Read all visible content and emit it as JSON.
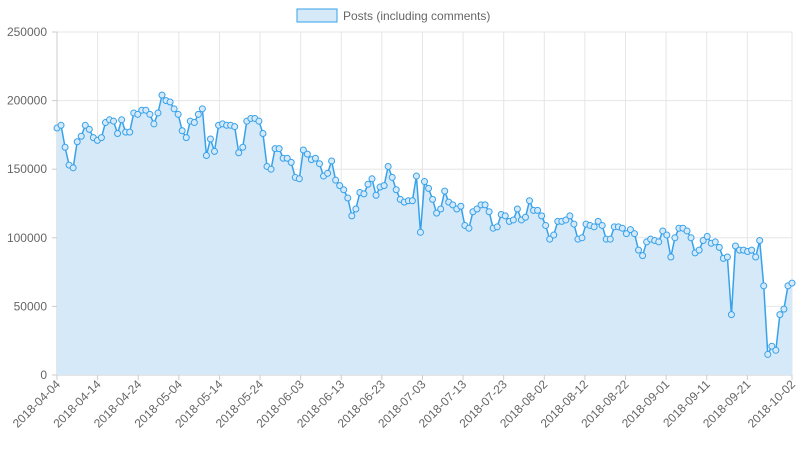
{
  "chart_data": {
    "type": "area",
    "title": "",
    "xlabel": "",
    "ylabel": "",
    "ylim": [
      0,
      250000
    ],
    "y_ticks": [
      "250000",
      "200000",
      "150000",
      "100000",
      "50000",
      "0"
    ],
    "x_ticks": [
      "2018-04-04",
      "2018-04-14",
      "2018-04-24",
      "2018-05-04",
      "2018-05-14",
      "2018-05-24",
      "2018-06-03",
      "2018-06-13",
      "2018-06-23",
      "2018-07-03",
      "2018-07-13",
      "2018-07-23",
      "2018-08-02",
      "2018-08-12",
      "2018-08-22",
      "2018-09-01",
      "2018-09-11",
      "2018-09-21",
      "2018-10-02"
    ],
    "grid": true,
    "legend_position": "top-center",
    "colors": {
      "line": "#36a2eb",
      "fill": "#d6e9f8",
      "grid": "#e6e6e6",
      "axis": "#cccccc"
    },
    "series": [
      {
        "name": "Posts (including comments)",
        "x_start": "2018-04-04",
        "x_end": "2018-10-02",
        "values": [
          180000,
          182000,
          166000,
          153000,
          151000,
          170000,
          174000,
          182000,
          179000,
          173000,
          171000,
          173000,
          184000,
          186000,
          185000,
          176000,
          186000,
          177000,
          177000,
          191000,
          190000,
          193000,
          193000,
          190000,
          183000,
          191000,
          204000,
          200000,
          199000,
          194000,
          190000,
          178000,
          173000,
          185000,
          184000,
          190000,
          194000,
          160000,
          172000,
          163000,
          182000,
          183000,
          182000,
          182000,
          181000,
          162000,
          166000,
          185000,
          187000,
          187000,
          185000,
          176000,
          152000,
          150000,
          165000,
          165000,
          158000,
          158000,
          155000,
          144000,
          143000,
          164000,
          161000,
          157000,
          158000,
          154000,
          145000,
          147000,
          156000,
          142000,
          138000,
          135000,
          129000,
          116000,
          121000,
          133000,
          132000,
          139000,
          143000,
          131000,
          137000,
          138000,
          152000,
          144000,
          135000,
          128000,
          126000,
          127000,
          127000,
          145000,
          104000,
          141000,
          136000,
          128000,
          118000,
          121000,
          134000,
          126000,
          124000,
          121000,
          123000,
          109000,
          107000,
          119000,
          121000,
          124000,
          124000,
          119000,
          107000,
          108000,
          117000,
          116000,
          112000,
          113000,
          121000,
          113000,
          115000,
          127000,
          120000,
          120000,
          116000,
          109000,
          99000,
          102000,
          112000,
          112000,
          113000,
          116000,
          110000,
          99000,
          100000,
          110000,
          109000,
          108000,
          112000,
          109000,
          99000,
          99000,
          108000,
          108000,
          107000,
          103000,
          106000,
          103000,
          91000,
          87000,
          97000,
          99000,
          98000,
          97000,
          105000,
          102000,
          86000,
          100000,
          107000,
          107000,
          105000,
          100000,
          89000,
          91000,
          98000,
          101000,
          96000,
          97000,
          93000,
          85000,
          86000,
          44000,
          94000,
          91000,
          91000,
          90000,
          91000,
          86000,
          98000,
          65000,
          15000,
          21000,
          18000,
          44000,
          48000,
          65000,
          67000
        ]
      }
    ]
  },
  "watermark": {
    "name": "steem-logo",
    "color": "#3a5a9a"
  }
}
